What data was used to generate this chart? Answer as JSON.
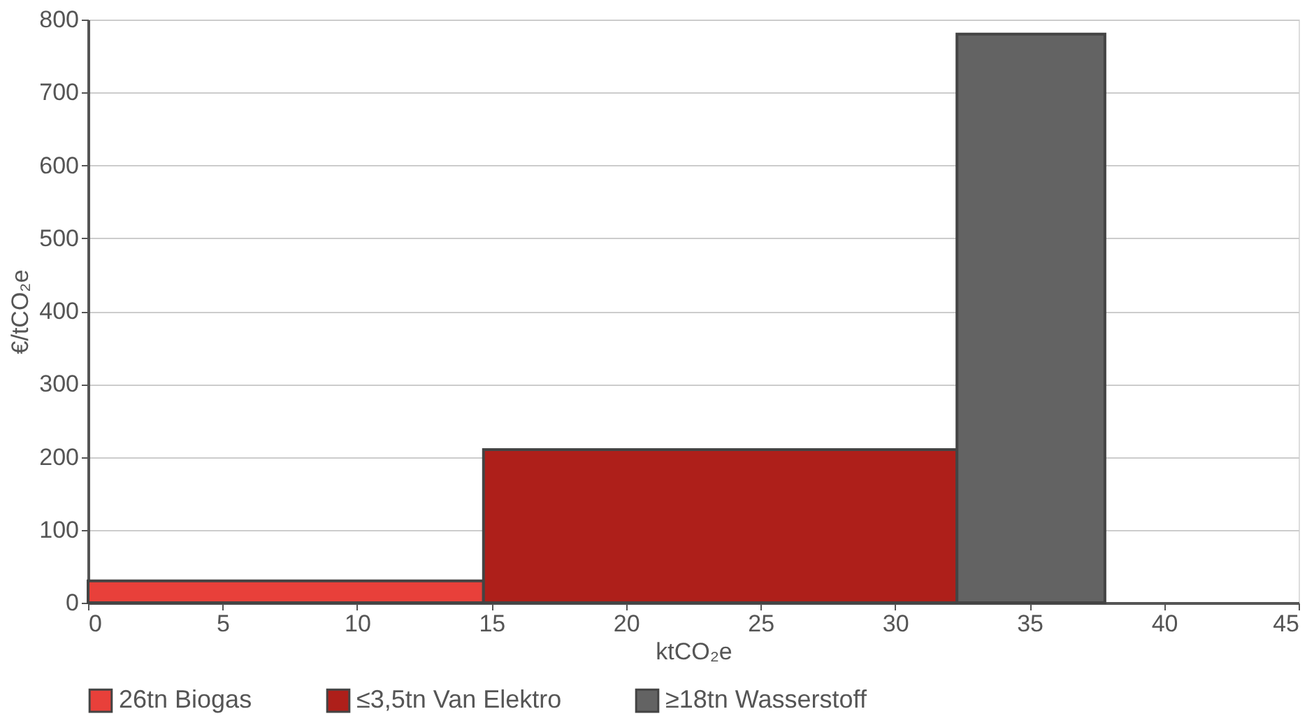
{
  "chart_data": {
    "type": "histogram",
    "xlabel": "ktCO₂e",
    "ylabel": "€/tCO₂e",
    "bins": [
      0,
      14.7,
      32.3,
      37.8
    ],
    "series": [
      {
        "name": "26tn Biogas",
        "color": "#e8403a",
        "values": [
          30,
          null,
          null
        ]
      },
      {
        "name": "≤3,5tn Van Elektro",
        "color": "#ae1f1a",
        "values": [
          null,
          210,
          null
        ]
      },
      {
        "name": "≥18tn Wasserstoff",
        "color": "#636363",
        "values": [
          null,
          null,
          780
        ]
      }
    ],
    "xlim": [
      0,
      45
    ],
    "xticks": [
      0,
      5,
      10,
      15,
      20,
      25,
      30,
      35,
      40,
      45
    ],
    "ylim": [
      0,
      800
    ],
    "yticks": [
      0,
      100,
      200,
      300,
      400,
      500,
      600,
      700,
      800
    ],
    "grid": "y",
    "legend": "bottom"
  }
}
